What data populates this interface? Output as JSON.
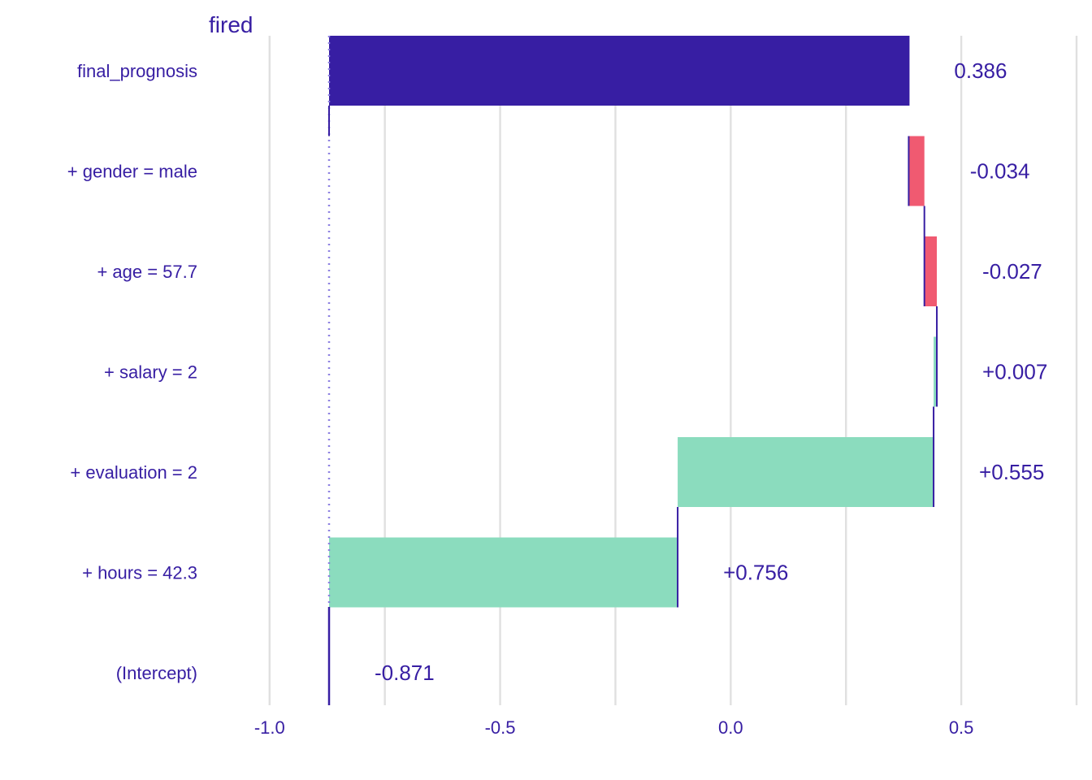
{
  "chart_data": {
    "type": "bar",
    "subtype": "waterfall",
    "title": "fired",
    "xlim": [
      -1.13,
      0.75
    ],
    "x_ticks": [
      -1.0,
      -0.5,
      0.0,
      0.5
    ],
    "x_tick_labels": [
      "-1.0",
      "-0.5",
      "0.0",
      "0.5"
    ],
    "grid": true,
    "intercept": -0.871,
    "categories": [
      "final_prognosis",
      "+ gender = male",
      "+ age = 57.7",
      "+ salary = 2",
      "+ evaluation = 2",
      "+ hours = 42.3",
      "(Intercept)"
    ],
    "values": [
      0.386,
      -0.034,
      -0.027,
      0.007,
      0.555,
      0.756,
      -0.871
    ],
    "value_labels": [
      "0.386",
      "-0.034",
      "-0.027",
      "+0.007",
      "+0.555",
      "+0.756",
      "-0.871"
    ],
    "bars": [
      {
        "label": "final_prognosis",
        "start": -0.871,
        "end": 0.386,
        "kind": "prediction"
      },
      {
        "label": "+ gender = male",
        "start": 0.42,
        "end": 0.386,
        "kind": "negative"
      },
      {
        "label": "+ age = 57.7",
        "start": 0.447,
        "end": 0.42,
        "kind": "negative"
      },
      {
        "label": "+ salary = 2",
        "start": 0.44,
        "end": 0.447,
        "kind": "positive"
      },
      {
        "label": "+ evaluation = 2",
        "start": -0.115,
        "end": 0.44,
        "kind": "positive"
      },
      {
        "label": "+ hours = 42.3",
        "start": -0.871,
        "end": -0.115,
        "kind": "positive"
      },
      {
        "label": "(Intercept)",
        "start": -0.871,
        "end": -0.871,
        "kind": "intercept"
      }
    ],
    "colors": {
      "prediction": "#371ea3",
      "negative": "#f05a71",
      "positive": "#8bdcbe",
      "text": "#371ea3",
      "reference_line": "#8d7fe0",
      "grid": "#e0e0e0"
    }
  }
}
